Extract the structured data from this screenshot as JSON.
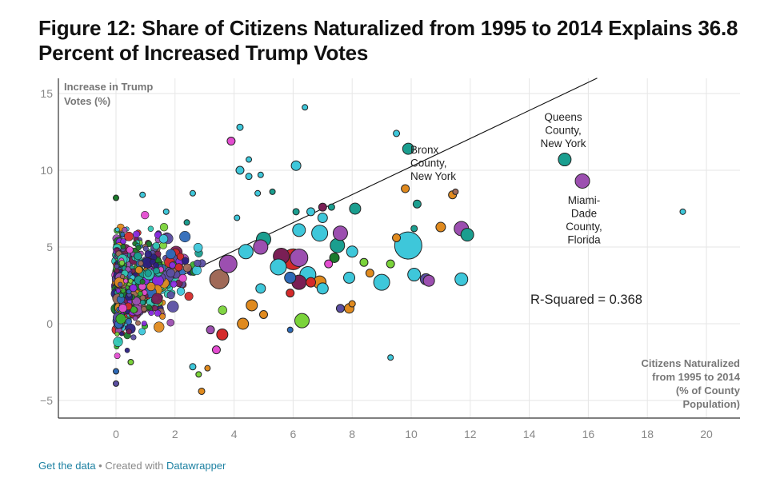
{
  "title": "Figure 12: Share of Citizens Naturalized from 1995 to 2014 Explains 36.8 Percent of Increased Trump Votes",
  "footer": {
    "get_data": "Get the data",
    "separator": " • Created with ",
    "tool": "Datawrapper"
  },
  "colors": {
    "grid": "#e6e6e6",
    "axis": "#333333",
    "tick_label": "#888888",
    "axis_title": "#777777",
    "marker_stroke": "#222222",
    "palette": [
      "#3ec7da",
      "#1a9e8f",
      "#9c4fb0",
      "#2a2080",
      "#8a2be2",
      "#e08a1e",
      "#7ad33a",
      "#a06a58",
      "#2e6ab8",
      "#7a1f55",
      "#e34cd0",
      "#33c7b5",
      "#1b7a2b",
      "#d42a2a",
      "#5b4fa2",
      "#38b030"
    ]
  },
  "chart_data": {
    "type": "scatter",
    "title": "Figure 12: Share of Citizens Naturalized from 1995 to 2014 Explains 36.8 Percent of Increased Trump Votes",
    "xlabel": "Citizens Naturalized from 1995 to 2014 (% of County Population)",
    "ylabel": "Increase in Trump Votes (%)",
    "xlim": [
      -2,
      21
    ],
    "ylim": [
      -6,
      15.5
    ],
    "x_ticks": [
      0,
      2,
      4,
      6,
      8,
      10,
      12,
      14,
      16,
      18,
      20
    ],
    "y_ticks": [
      -5,
      0,
      5,
      10,
      15
    ],
    "grid": true,
    "r_squared_label": "R-Squared = 0.368",
    "trendline": {
      "x": [
        0,
        16.3
      ],
      "y": [
        1.1,
        16.0
      ]
    },
    "annotations": [
      {
        "label": "Bronx County, New York",
        "lines": [
          "Bronx",
          "County,",
          "New York"
        ],
        "x": 9.9,
        "y": 11.4
      },
      {
        "label": "Queens County, New York",
        "lines": [
          "Queens",
          "County,",
          "New York"
        ],
        "x": 15.2,
        "y": 10.7
      },
      {
        "label": "Miami-Dade County, Florida",
        "lines": [
          "Miami-",
          "Dade",
          "County,",
          "Florida"
        ],
        "x": 15.8,
        "y": 9.3
      }
    ],
    "highlighted_points": [
      {
        "x": 9.9,
        "y": 11.4,
        "size": 7,
        "color": "#1a9e8f"
      },
      {
        "x": 15.2,
        "y": 10.7,
        "size": 8,
        "color": "#1a9e8f"
      },
      {
        "x": 15.8,
        "y": 9.3,
        "size": 9,
        "color": "#9c4fb0"
      },
      {
        "x": 19.2,
        "y": 7.3,
        "size": 3.5,
        "color": "#3ec7da"
      },
      {
        "x": 6.4,
        "y": 14.1,
        "size": 3.5,
        "color": "#3ec7da"
      },
      {
        "x": 9.9,
        "y": 5.1,
        "size": 17,
        "color": "#3ec7da"
      },
      {
        "x": 3.9,
        "y": 11.9,
        "size": 5,
        "color": "#e34cd0"
      },
      {
        "x": 4.2,
        "y": 12.8,
        "size": 4,
        "color": "#3ec7da"
      },
      {
        "x": 9.5,
        "y": 12.4,
        "size": 4,
        "color": "#3ec7da"
      },
      {
        "x": 6.1,
        "y": 10.3,
        "size": 6,
        "color": "#3ec7da"
      },
      {
        "x": 4.2,
        "y": 10.0,
        "size": 5,
        "color": "#3ec7da"
      },
      {
        "x": 4.5,
        "y": 9.6,
        "size": 4,
        "color": "#3ec7da"
      },
      {
        "x": 4.5,
        "y": 10.7,
        "size": 3.5,
        "color": "#3ec7da"
      },
      {
        "x": 4.9,
        "y": 9.7,
        "size": 3.5,
        "color": "#3ec7da"
      },
      {
        "x": 9.8,
        "y": 8.8,
        "size": 5,
        "color": "#e08a1e"
      },
      {
        "x": 10.2,
        "y": 7.8,
        "size": 5,
        "color": "#1a9e8f"
      },
      {
        "x": 11.4,
        "y": 8.4,
        "size": 5,
        "color": "#e08a1e"
      },
      {
        "x": 11.5,
        "y": 8.6,
        "size": 3.5,
        "color": "#a06a58"
      },
      {
        "x": 8.1,
        "y": 7.5,
        "size": 7,
        "color": "#1a9e8f"
      },
      {
        "x": 11.0,
        "y": 6.3,
        "size": 6,
        "color": "#e08a1e"
      },
      {
        "x": 11.7,
        "y": 6.2,
        "size": 9,
        "color": "#9c4fb0"
      },
      {
        "x": 11.9,
        "y": 5.8,
        "size": 8,
        "color": "#1a9e8f"
      },
      {
        "x": 11.7,
        "y": 2.9,
        "size": 8,
        "color": "#3ec7da"
      },
      {
        "x": 10.1,
        "y": 3.2,
        "size": 8,
        "color": "#3ec7da"
      },
      {
        "x": 10.5,
        "y": 2.9,
        "size": 7,
        "color": "#5b4fa2"
      },
      {
        "x": 10.6,
        "y": 2.8,
        "size": 7,
        "color": "#9c4fb0"
      },
      {
        "x": 9.0,
        "y": 2.7,
        "size": 10,
        "color": "#3ec7da"
      },
      {
        "x": 9.3,
        "y": 3.9,
        "size": 5,
        "color": "#7ad33a"
      },
      {
        "x": 9.5,
        "y": 5.6,
        "size": 5,
        "color": "#e08a1e"
      },
      {
        "x": 10.1,
        "y": 6.2,
        "size": 4,
        "color": "#1a9e8f"
      },
      {
        "x": 9.3,
        "y": -2.2,
        "size": 3.5,
        "color": "#3ec7da"
      },
      {
        "x": 8.6,
        "y": 3.3,
        "size": 5,
        "color": "#e08a1e"
      },
      {
        "x": 8.4,
        "y": 4.0,
        "size": 5,
        "color": "#7ad33a"
      },
      {
        "x": 8.0,
        "y": 4.7,
        "size": 7,
        "color": "#3ec7da"
      },
      {
        "x": 7.9,
        "y": 3.0,
        "size": 7,
        "color": "#3ec7da"
      },
      {
        "x": 7.5,
        "y": 5.1,
        "size": 9,
        "color": "#1a9e8f"
      },
      {
        "x": 7.6,
        "y": 5.9,
        "size": 9,
        "color": "#9c4fb0"
      },
      {
        "x": 7.0,
        "y": 6.9,
        "size": 6,
        "color": "#3ec7da"
      },
      {
        "x": 7.0,
        "y": 7.6,
        "size": 5,
        "color": "#7a1f55"
      },
      {
        "x": 7.3,
        "y": 7.6,
        "size": 4,
        "color": "#1a9e8f"
      },
      {
        "x": 6.9,
        "y": 5.9,
        "size": 10,
        "color": "#3ec7da"
      },
      {
        "x": 6.2,
        "y": 6.1,
        "size": 8,
        "color": "#3ec7da"
      },
      {
        "x": 6.1,
        "y": 7.3,
        "size": 4,
        "color": "#1a9e8f"
      },
      {
        "x": 6.6,
        "y": 7.3,
        "size": 5,
        "color": "#3ec7da"
      },
      {
        "x": 6.0,
        "y": 4.2,
        "size": 13,
        "color": "#d42a2a"
      },
      {
        "x": 6.2,
        "y": 4.3,
        "size": 11,
        "color": "#9c4fb0"
      },
      {
        "x": 6.5,
        "y": 3.2,
        "size": 10,
        "color": "#3ec7da"
      },
      {
        "x": 6.2,
        "y": 2.7,
        "size": 9,
        "color": "#7a1f55"
      },
      {
        "x": 5.6,
        "y": 4.4,
        "size": 10,
        "color": "#7a1f55"
      },
      {
        "x": 5.5,
        "y": 3.7,
        "size": 10,
        "color": "#3ec7da"
      },
      {
        "x": 5.9,
        "y": 3.0,
        "size": 7,
        "color": "#2e6ab8"
      },
      {
        "x": 6.6,
        "y": 2.7,
        "size": 6,
        "color": "#d42a2a"
      },
      {
        "x": 7.0,
        "y": 2.3,
        "size": 7,
        "color": "#3ec7da"
      },
      {
        "x": 6.9,
        "y": 2.7,
        "size": 8,
        "color": "#e08a1e"
      },
      {
        "x": 7.4,
        "y": 4.3,
        "size": 6,
        "color": "#1b7a2b"
      },
      {
        "x": 7.2,
        "y": 3.9,
        "size": 5,
        "color": "#e34cd0"
      },
      {
        "x": 6.3,
        "y": 0.2,
        "size": 9,
        "color": "#7ad33a"
      },
      {
        "x": 5.9,
        "y": 2.0,
        "size": 5,
        "color": "#d42a2a"
      },
      {
        "x": 7.9,
        "y": 1.0,
        "size": 6,
        "color": "#e08a1e"
      },
      {
        "x": 8.0,
        "y": 1.3,
        "size": 4,
        "color": "#e08a1e"
      },
      {
        "x": 7.6,
        "y": 1.0,
        "size": 5,
        "color": "#5b4fa2"
      },
      {
        "x": 5.0,
        "y": 0.6,
        "size": 5,
        "color": "#e08a1e"
      },
      {
        "x": 5.9,
        "y": -0.4,
        "size": 3.5,
        "color": "#2e6ab8"
      },
      {
        "x": 5.0,
        "y": 5.5,
        "size": 9,
        "color": "#1a9e8f"
      },
      {
        "x": 4.9,
        "y": 5.0,
        "size": 9,
        "color": "#9c4fb0"
      },
      {
        "x": 4.4,
        "y": 4.7,
        "size": 9,
        "color": "#3ec7da"
      },
      {
        "x": 3.8,
        "y": 3.9,
        "size": 11,
        "color": "#9c4fb0"
      },
      {
        "x": 3.5,
        "y": 2.9,
        "size": 12,
        "color": "#a06a58"
      },
      {
        "x": 3.6,
        "y": -0.7,
        "size": 7,
        "color": "#d42a2a"
      },
      {
        "x": 3.4,
        "y": -1.7,
        "size": 5,
        "color": "#e34cd0"
      },
      {
        "x": 3.2,
        "y": -0.4,
        "size": 5,
        "color": "#9c4fb0"
      },
      {
        "x": 2.9,
        "y": -4.4,
        "size": 4,
        "color": "#e08a1e"
      },
      {
        "x": 2.6,
        "y": -2.8,
        "size": 4,
        "color": "#3ec7da"
      },
      {
        "x": 3.1,
        "y": -2.9,
        "size": 3.5,
        "color": "#e08a1e"
      },
      {
        "x": 2.8,
        "y": -3.3,
        "size": 3.5,
        "color": "#7ad33a"
      },
      {
        "x": 4.3,
        "y": 0.0,
        "size": 7,
        "color": "#e08a1e"
      },
      {
        "x": 4.6,
        "y": 1.2,
        "size": 7,
        "color": "#e08a1e"
      },
      {
        "x": 4.9,
        "y": 2.3,
        "size": 6,
        "color": "#3ec7da"
      },
      {
        "x": 2.6,
        "y": 8.5,
        "size": 3.5,
        "color": "#3ec7da"
      },
      {
        "x": 2.4,
        "y": 6.6,
        "size": 3.5,
        "color": "#1a9e8f"
      },
      {
        "x": 4.1,
        "y": 6.9,
        "size": 3.5,
        "color": "#3ec7da"
      },
      {
        "x": 4.8,
        "y": 8.5,
        "size": 3.5,
        "color": "#3ec7da"
      },
      {
        "x": 5.3,
        "y": 8.6,
        "size": 3.5,
        "color": "#1a9e8f"
      },
      {
        "x": 1.7,
        "y": 7.3,
        "size": 3.5,
        "color": "#3ec7da"
      },
      {
        "x": 0.9,
        "y": 8.4,
        "size": 3.5,
        "color": "#3ec7da"
      },
      {
        "x": 0.0,
        "y": 8.2,
        "size": 3.5,
        "color": "#1b7a2b"
      },
      {
        "x": 0.0,
        "y": -3.9,
        "size": 3.5,
        "color": "#5b4fa2"
      },
      {
        "x": 0.0,
        "y": -3.1,
        "size": 3.5,
        "color": "#2e6ab8"
      },
      {
        "x": 0.5,
        "y": -2.5,
        "size": 3.5,
        "color": "#7ad33a"
      }
    ],
    "cluster": {
      "count": 900,
      "x_range": [
        0,
        5
      ],
      "y_center": 2.5,
      "y_spread": 2.6,
      "slope": 0.35
    },
    "cluster_note": "Dense cloud of ~1,000 county points between x = 0 and 5, y = -3 to 8"
  }
}
